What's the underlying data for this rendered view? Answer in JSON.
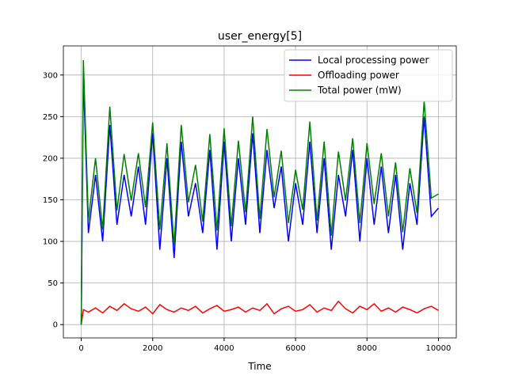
{
  "chart_data": {
    "type": "line",
    "title": "user_energy[5]",
    "x_label": "Time",
    "x": [
      0,
      60,
      200,
      400,
      600,
      800,
      1000,
      1200,
      1400,
      1600,
      1800,
      2000,
      2200,
      2400,
      2600,
      2800,
      3000,
      3200,
      3400,
      3600,
      3800,
      4000,
      4200,
      4400,
      4600,
      4800,
      5000,
      5200,
      5400,
      5600,
      5800,
      6000,
      6200,
      6400,
      6600,
      6800,
      7000,
      7200,
      7400,
      7600,
      7800,
      8000,
      8200,
      8400,
      8600,
      8800,
      9000,
      9200,
      9400,
      9600,
      9800,
      10000
    ],
    "series": [
      {
        "name": "Local processing power",
        "color": "#0000ff",
        "values": [
          0,
          300,
          110,
          180,
          100,
          240,
          120,
          180,
          130,
          190,
          120,
          230,
          90,
          200,
          80,
          220,
          130,
          170,
          110,
          210,
          90,
          220,
          100,
          200,
          120,
          230,
          110,
          210,
          140,
          190,
          100,
          170,
          120,
          220,
          110,
          200,
          90,
          180,
          130,
          210,
          100,
          200,
          120,
          190,
          110,
          180,
          90,
          170,
          120,
          250,
          130,
          140
        ]
      },
      {
        "name": "Offloading power",
        "color": "#ff0000",
        "values": [
          0,
          18,
          15,
          20,
          14,
          22,
          17,
          25,
          19,
          16,
          21,
          13,
          24,
          18,
          15,
          20,
          17,
          22,
          14,
          19,
          23,
          16,
          18,
          21,
          15,
          20,
          17,
          25,
          13,
          19,
          22,
          16,
          18,
          24,
          15,
          20,
          17,
          28,
          19,
          14,
          22,
          18,
          25,
          16,
          20,
          15,
          21,
          18,
          14,
          19,
          22,
          17
        ]
      },
      {
        "name": "Total power (mW)",
        "color": "#008000",
        "values": [
          0,
          318,
          125,
          200,
          114,
          262,
          137,
          205,
          149,
          206,
          141,
          243,
          114,
          218,
          95,
          240,
          147,
          192,
          124,
          229,
          113,
          236,
          118,
          221,
          135,
          250,
          127,
          235,
          153,
          209,
          122,
          186,
          138,
          244,
          125,
          220,
          107,
          208,
          149,
          224,
          122,
          218,
          145,
          206,
          130,
          195,
          111,
          188,
          134,
          269,
          152,
          157
        ]
      }
    ],
    "xlim": [
      -500,
      10500
    ],
    "ylim": [
      -16,
      335
    ],
    "xticks": [
      0,
      2000,
      4000,
      6000,
      8000,
      10000
    ],
    "yticks": [
      0,
      50,
      100,
      150,
      200,
      250,
      300
    ],
    "grid": true,
    "legend": "upper right"
  }
}
